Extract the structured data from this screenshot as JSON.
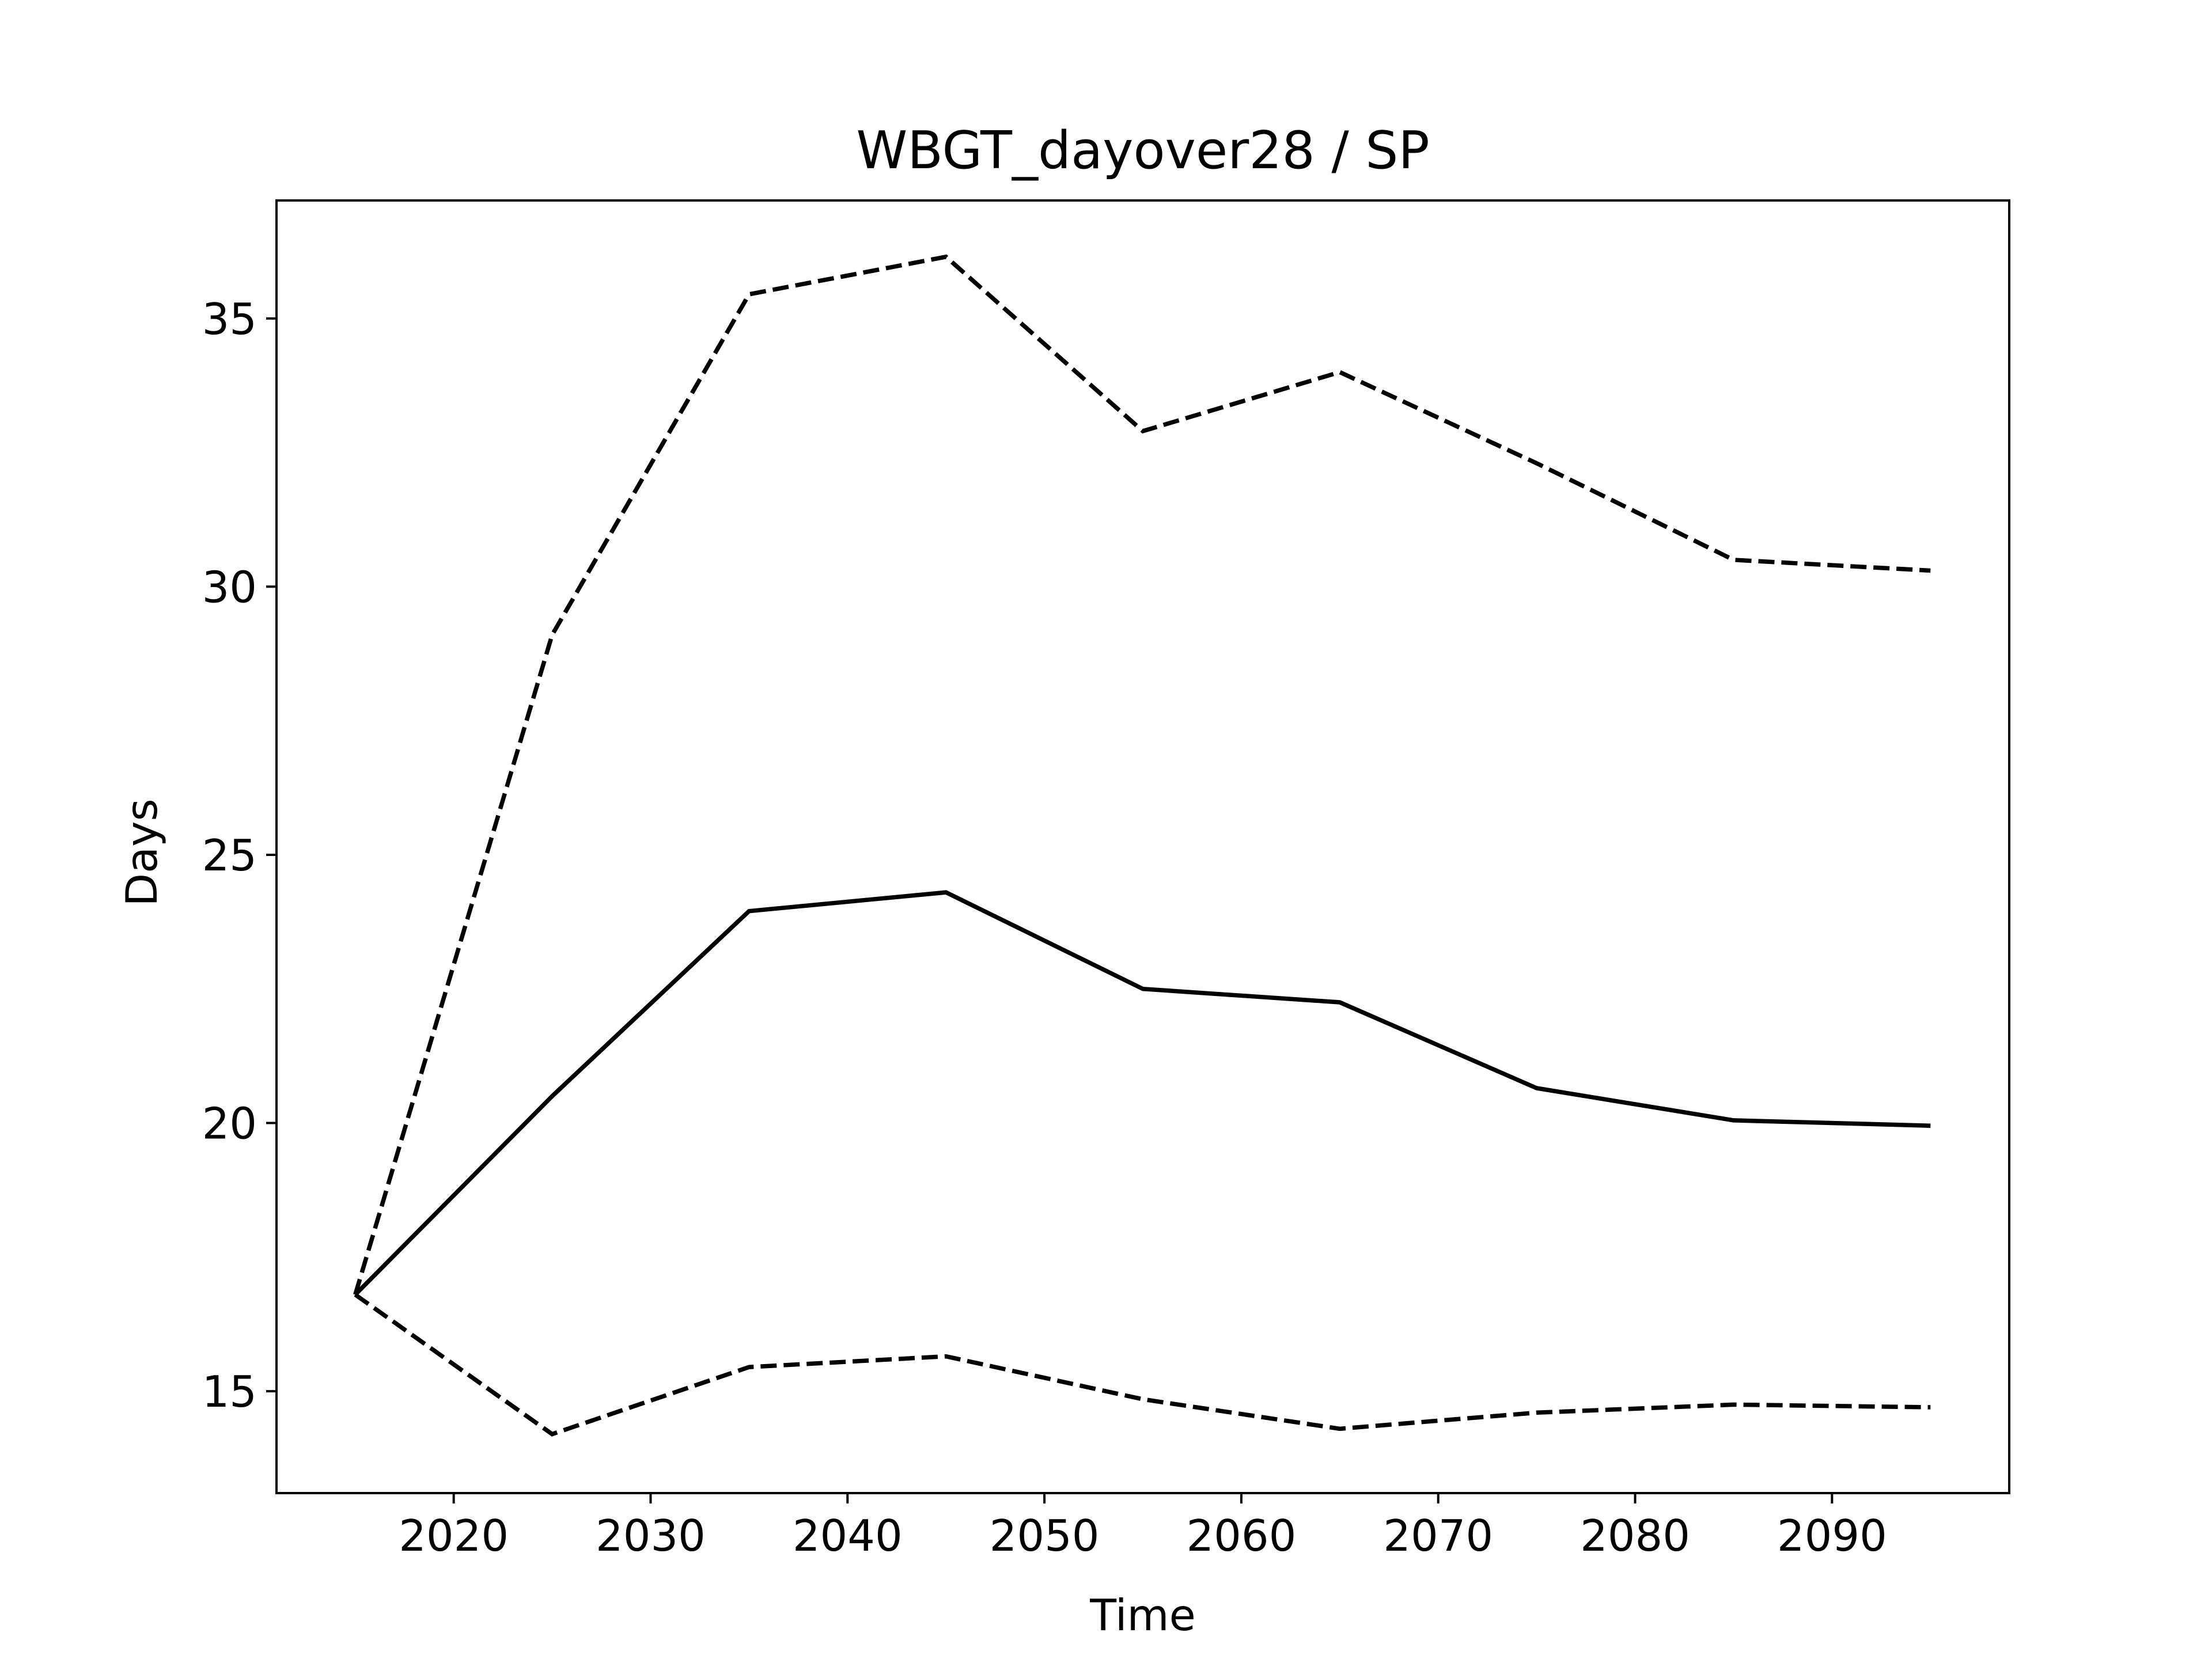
{
  "chart_data": {
    "type": "line",
    "title": "WBGT_dayover28 / SP",
    "xlabel": "Time",
    "ylabel": "Days",
    "xlim": [
      2011,
      2099
    ],
    "ylim": [
      13.1,
      37.2
    ],
    "xticks": [
      2020,
      2030,
      2040,
      2050,
      2060,
      2070,
      2080,
      2090
    ],
    "yticks": [
      15,
      20,
      25,
      30,
      35
    ],
    "grid": false,
    "legend": "none",
    "x": [
      2015,
      2025,
      2035,
      2045,
      2055,
      2065,
      2075,
      2085,
      2095
    ],
    "series": [
      {
        "style": "solid",
        "color": "#000000",
        "values": [
          16.8,
          20.5,
          23.95,
          24.3,
          22.5,
          22.25,
          20.65,
          20.05,
          19.95
        ]
      },
      {
        "style": "dashed",
        "color": "#000000",
        "values": [
          16.8,
          29.1,
          35.45,
          36.15,
          32.9,
          34.0,
          32.3,
          30.5,
          30.3
        ]
      },
      {
        "style": "dashed",
        "color": "#000000",
        "values": [
          16.8,
          14.2,
          15.45,
          15.65,
          14.85,
          14.3,
          14.6,
          14.75,
          14.7
        ]
      }
    ]
  }
}
